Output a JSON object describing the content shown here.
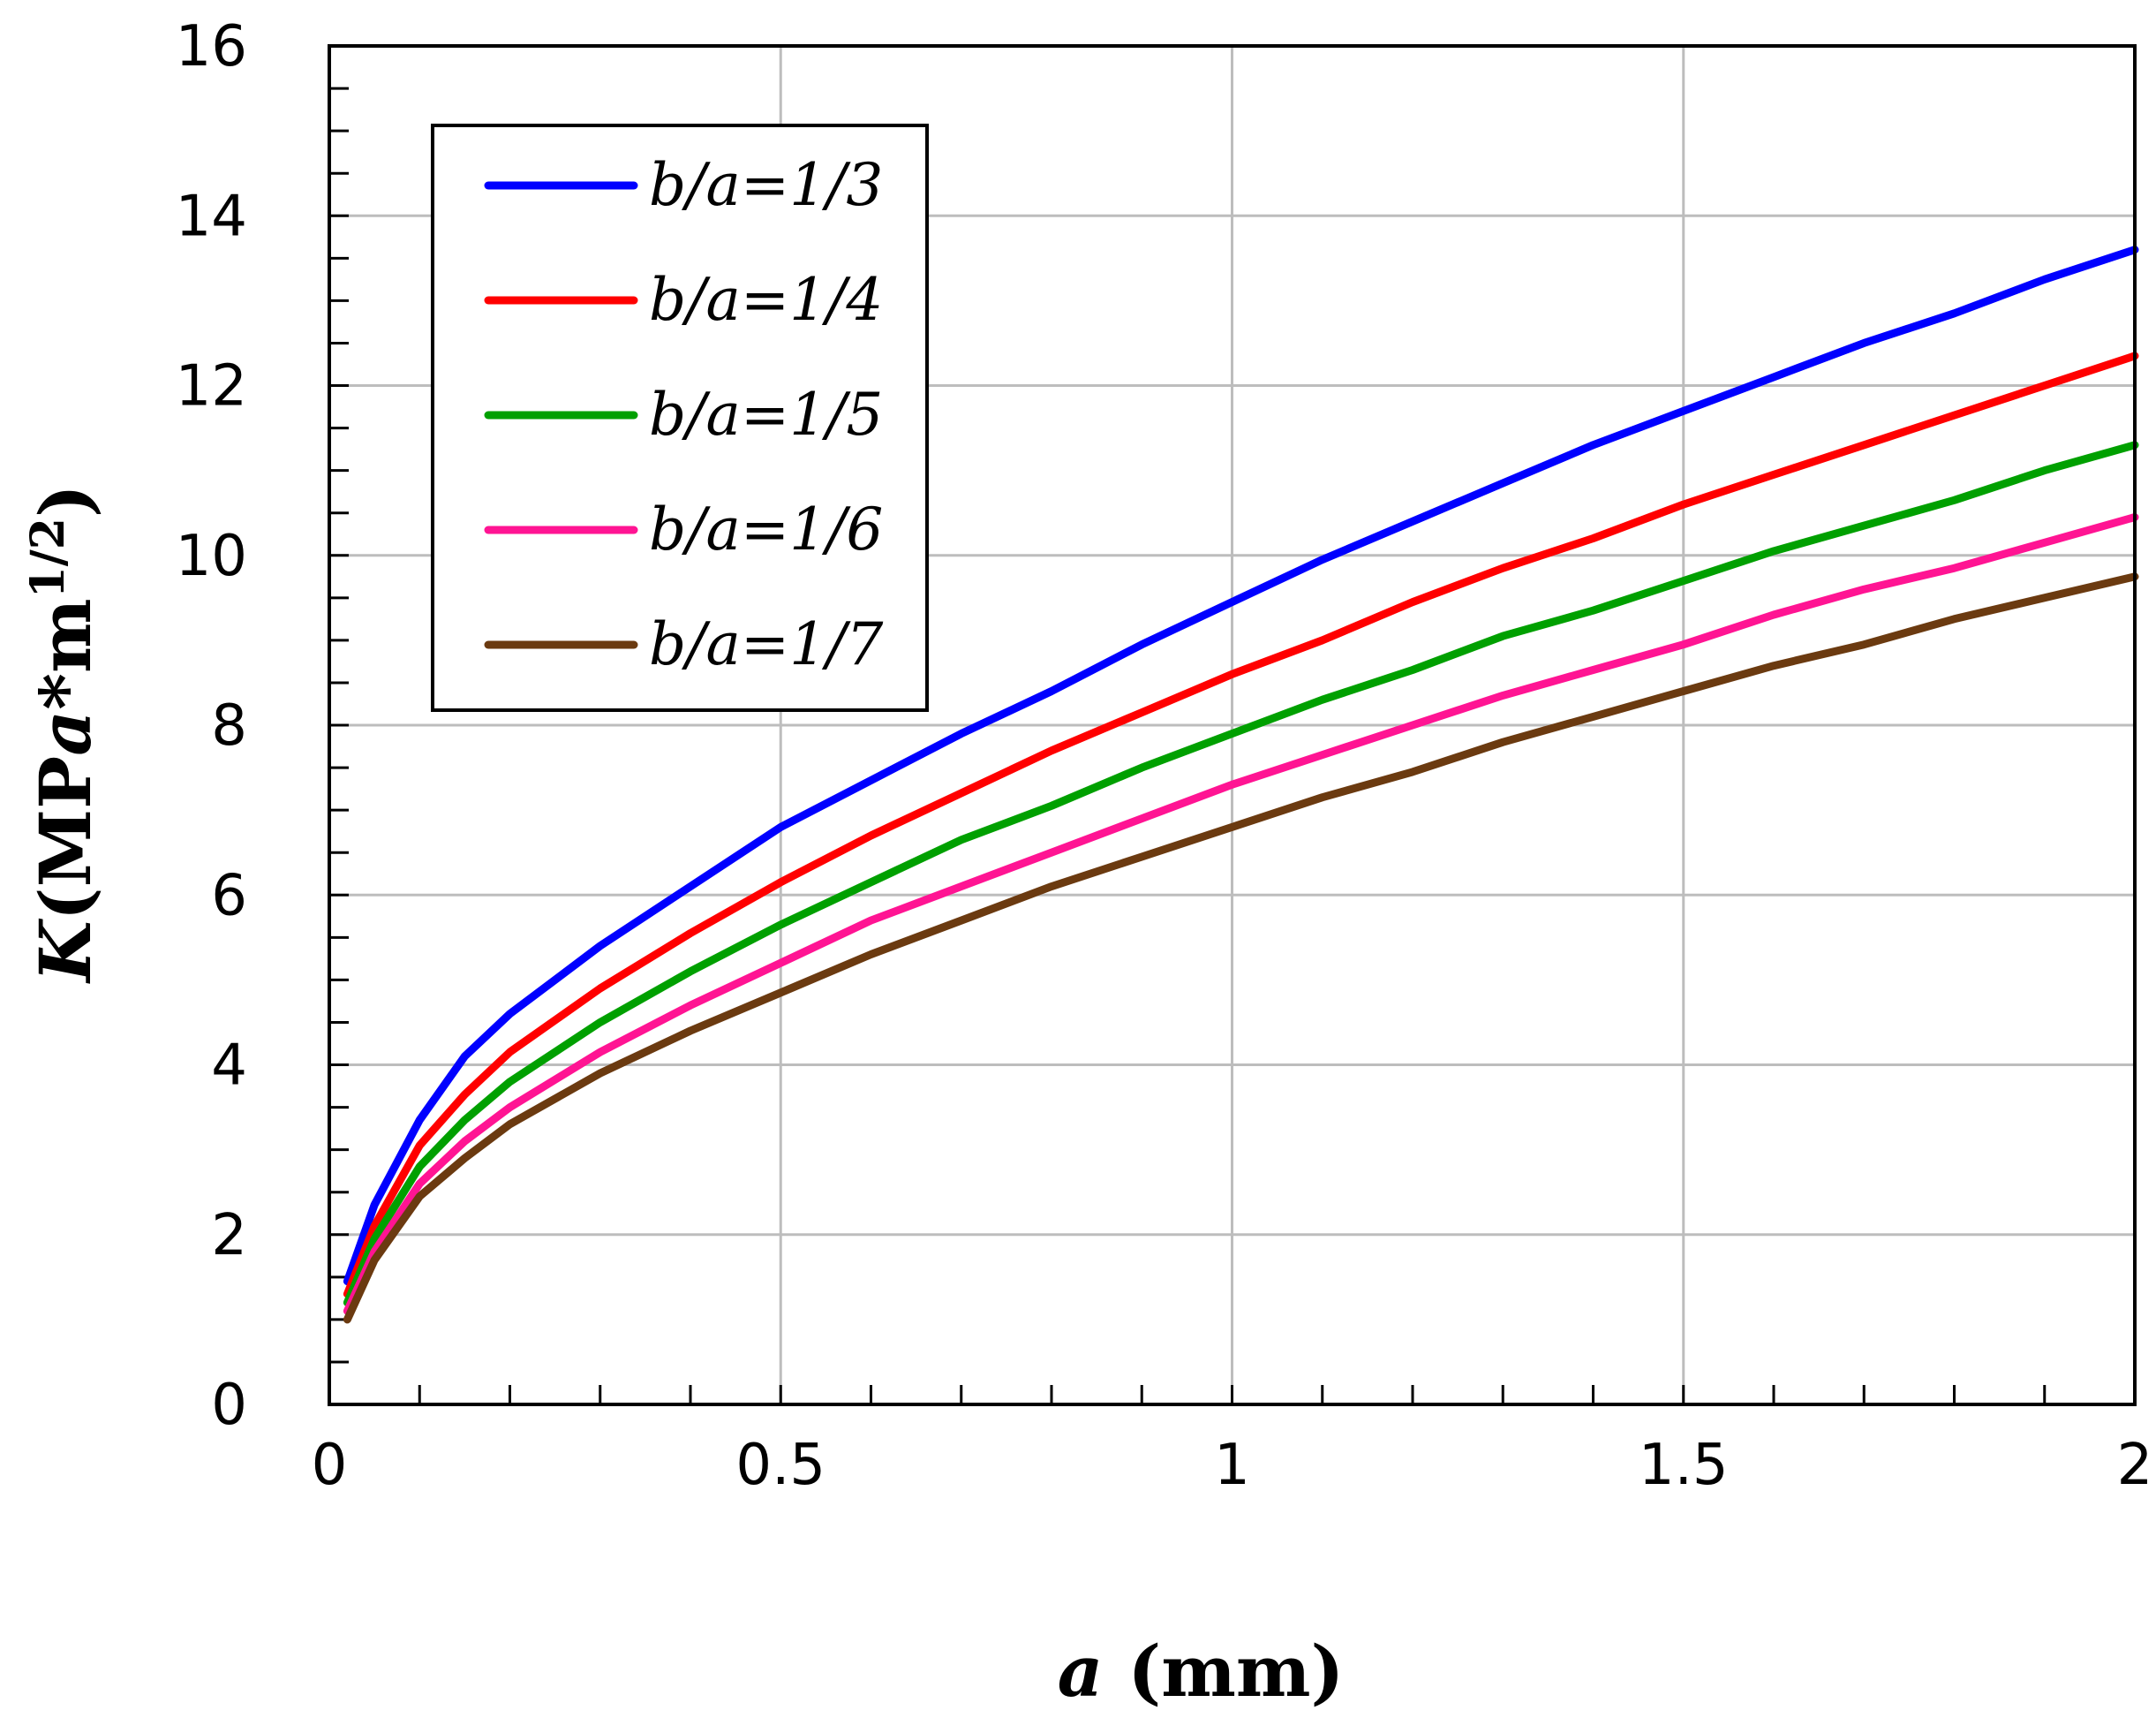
{
  "chart_data": {
    "type": "line",
    "title": "",
    "xlabel_italic": "a",
    "xlabel_rest": " (mm)",
    "ylabel_italic_k": "K",
    "ylabel_mid": "(MP",
    "ylabel_italic_a": "a",
    "ylabel_star": "*m",
    "ylabel_sup": "1/2",
    "ylabel_close": ")",
    "xlim": [
      0,
      2
    ],
    "ylim": [
      0,
      16
    ],
    "xticks": [
      "0",
      "0.5",
      "1",
      "1.5",
      "2"
    ],
    "yticks": [
      "0",
      "2",
      "4",
      "6",
      "8",
      "10",
      "12",
      "14",
      "16"
    ],
    "grid": true,
    "legend_position": "top-left",
    "x": [
      0.02,
      0.05,
      0.1,
      0.15,
      0.2,
      0.3,
      0.4,
      0.5,
      0.6,
      0.7,
      0.8,
      0.9,
      1.0,
      1.1,
      1.2,
      1.3,
      1.4,
      1.5,
      1.6,
      1.7,
      1.8,
      1.9,
      2.0
    ],
    "series": [
      {
        "name": "b/a=1/3",
        "color": "#0000ff",
        "values": [
          1.45,
          2.35,
          3.35,
          4.1,
          4.6,
          5.4,
          6.1,
          6.8,
          7.35,
          7.9,
          8.4,
          8.95,
          9.45,
          9.95,
          10.4,
          10.85,
          11.3,
          11.7,
          12.1,
          12.5,
          12.85,
          13.25,
          13.6
        ]
      },
      {
        "name": "b/a=1/4",
        "color": "#ff0000",
        "values": [
          1.3,
          2.1,
          3.05,
          3.65,
          4.15,
          4.9,
          5.55,
          6.15,
          6.7,
          7.2,
          7.7,
          8.15,
          8.6,
          9.0,
          9.45,
          9.85,
          10.2,
          10.6,
          10.95,
          11.3,
          11.65,
          12.0,
          12.35
        ]
      },
      {
        "name": "b/a=1/5",
        "color": "#00a000",
        "values": [
          1.2,
          1.95,
          2.8,
          3.35,
          3.8,
          4.5,
          5.1,
          5.65,
          6.15,
          6.65,
          7.05,
          7.5,
          7.9,
          8.3,
          8.65,
          9.05,
          9.35,
          9.7,
          10.05,
          10.35,
          10.65,
          11.0,
          11.3
        ]
      },
      {
        "name": "b/a=1/6",
        "color": "#ff1493",
        "values": [
          1.1,
          1.8,
          2.6,
          3.1,
          3.5,
          4.15,
          4.7,
          5.2,
          5.7,
          6.1,
          6.5,
          6.9,
          7.3,
          7.65,
          8.0,
          8.35,
          8.65,
          8.95,
          9.3,
          9.6,
          9.85,
          10.15,
          10.45
        ]
      },
      {
        "name": "b/a=1/7",
        "color": "#6b3a10",
        "values": [
          1.0,
          1.7,
          2.45,
          2.9,
          3.3,
          3.9,
          4.4,
          4.85,
          5.3,
          5.7,
          6.1,
          6.45,
          6.8,
          7.15,
          7.45,
          7.8,
          8.1,
          8.4,
          8.7,
          8.95,
          9.25,
          9.5,
          9.75
        ]
      }
    ]
  }
}
